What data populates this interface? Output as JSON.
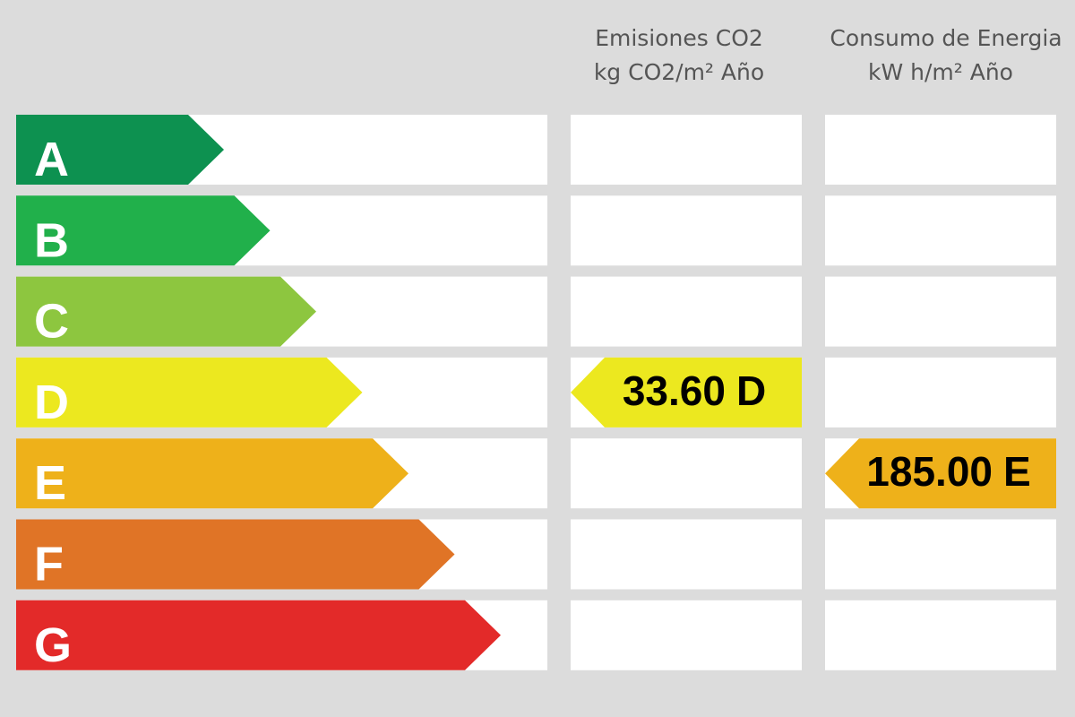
{
  "columns": [
    {
      "title": "Emisiones CO2",
      "unit": "kg CO2/m² Año"
    },
    {
      "title": "Consumo de Energia",
      "unit": "kW h/m² Año"
    }
  ],
  "ratings": [
    {
      "letter": "A",
      "color": "#0d9150"
    },
    {
      "letter": "B",
      "color": "#21b04b"
    },
    {
      "letter": "C",
      "color": "#8dc63f"
    },
    {
      "letter": "D",
      "color": "#ece81f"
    },
    {
      "letter": "E",
      "color": "#eeb11a"
    },
    {
      "letter": "F",
      "color": "#e07426"
    },
    {
      "letter": "G",
      "color": "#e32a29"
    }
  ],
  "indicators": [
    {
      "value": "33.60",
      "rating": "D"
    },
    {
      "value": "185.00",
      "rating": "E"
    }
  ]
}
